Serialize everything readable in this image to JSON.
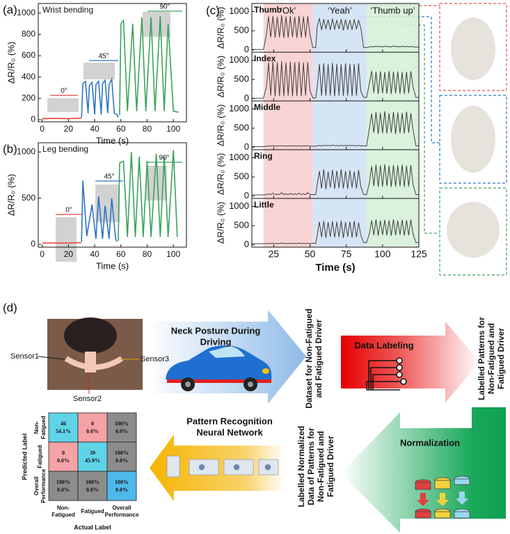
{
  "chart_data": [
    {
      "type": "line",
      "panel_label": "(a)",
      "annotation": "Wrist bending",
      "xlabel": "Time (s)",
      "ylabel": "ΔR/R₀ (%)",
      "xlim": [
        -3,
        110
      ],
      "xticks": [
        0,
        20,
        40,
        60,
        80,
        100
      ],
      "ylim": [
        -20,
        1090
      ],
      "yticks": [
        0,
        200,
        400,
        600,
        800,
        1000
      ],
      "series": [
        {
          "name": "0°",
          "color": "#e8413c",
          "x": [
            0,
            10,
            20,
            30
          ],
          "values": [
            10,
            12,
            10,
            15
          ]
        },
        {
          "name": "45°",
          "color": "#2e74c0",
          "x": [
            30,
            31,
            33,
            35,
            36,
            38,
            40,
            41,
            43,
            45,
            46,
            48,
            50,
            51,
            53,
            55,
            57,
            58
          ],
          "values": [
            20,
            340,
            360,
            60,
            320,
            350,
            50,
            330,
            360,
            50,
            340,
            370,
            60,
            330,
            380,
            60,
            50,
            20
          ]
        },
        {
          "name": "90°",
          "color": "#3aa35a",
          "x": [
            59,
            60,
            62,
            65,
            69,
            72,
            76,
            79,
            83,
            86,
            90,
            93,
            96,
            100,
            104
          ],
          "values": [
            40,
            900,
            930,
            80,
            900,
            80,
            960,
            80,
            960,
            80,
            970,
            80,
            900,
            80,
            70
          ]
        }
      ]
    },
    {
      "type": "line",
      "panel_label": "(b)",
      "annotation": "Leg bending",
      "xlabel": "Time (s)",
      "ylabel": "ΔR/R₀ (%)",
      "xlim": [
        -3,
        110
      ],
      "xticks": [
        0,
        20,
        40,
        60,
        80,
        100
      ],
      "ylim": [
        -30,
        1100
      ],
      "yticks": [
        0,
        500,
        1000
      ],
      "series": [
        {
          "name": "0°",
          "color": "#e8413c",
          "x": [
            0,
            10,
            20,
            30
          ],
          "values": [
            15,
            15,
            15,
            20
          ]
        },
        {
          "name": "45°",
          "color": "#2e74c0",
          "x": [
            30,
            31,
            34,
            38,
            41,
            43,
            46,
            48,
            51,
            53,
            56,
            57
          ],
          "values": [
            30,
            690,
            90,
            430,
            60,
            520,
            60,
            420,
            60,
            500,
            60,
            30
          ]
        },
        {
          "name": "90°",
          "color": "#3aa35a",
          "x": [
            58,
            59,
            62,
            65,
            68,
            71,
            74,
            77,
            80,
            83,
            87,
            90,
            93,
            96,
            100,
            103
          ],
          "values": [
            40,
            880,
            900,
            80,
            1000,
            80,
            950,
            80,
            900,
            80,
            980,
            80,
            950,
            80,
            1020,
            80
          ]
        }
      ]
    },
    {
      "type": "line-stack",
      "panel_label": "(c)",
      "xlabel": "Time (s)",
      "xlim": [
        10,
        125
      ],
      "xticks": [
        25,
        50,
        75,
        100,
        125
      ],
      "x": [
        10,
        18,
        20,
        21.5,
        23,
        24.5,
        26,
        27.5,
        29,
        30.5,
        32,
        33.5,
        35,
        36.5,
        38,
        39.5,
        41,
        42.5,
        44,
        45.5,
        47,
        48.5,
        50,
        52,
        54,
        55,
        56.5,
        58,
        59.5,
        61,
        62.5,
        64,
        65.5,
        67,
        68.5,
        70,
        71.5,
        73,
        74.5,
        76,
        77.5,
        79,
        80.5,
        82,
        83.5,
        85,
        87,
        89,
        91,
        92.5,
        94,
        95.5,
        97,
        98.5,
        100,
        101.5,
        103,
        104.5,
        106,
        107.5,
        109,
        110.5,
        112,
        113.5,
        115,
        116.5,
        118,
        119.5,
        121,
        123,
        125
      ],
      "regions": [
        {
          "label": "‘Ok’",
          "from": 18,
          "to": 52,
          "color": "#e8524a",
          "fill": "#f8cdcd"
        },
        {
          "label": "‘Yeah’",
          "from": 52,
          "to": 89,
          "color": "#2e6db4",
          "fill": "#cfe0f3"
        },
        {
          "label": "‘Thumb up’",
          "from": 89,
          "to": 125,
          "color": "#2ca24a",
          "fill": "#d3eed6"
        }
      ],
      "panels": [
        {
          "ylabel": "ΔR/R₀ (%)",
          "ylim": [
            -60,
            1100
          ],
          "yticks": [
            0,
            500,
            1000
          ],
          "series": [
            {
              "name": "Thumb",
              "color": "#404040",
              "values": [
                10,
                10,
                400,
                870,
                330,
                880,
                320,
                860,
                330,
                900,
                310,
                870,
                320,
                880,
                330,
                860,
                310,
                890,
                320,
                870,
                330,
                880,
                400,
                60,
                60,
                600,
                820,
                520,
                800,
                540,
                790,
                520,
                810,
                530,
                780,
                540,
                800,
                510,
                790,
                530,
                780,
                520,
                800,
                540,
                770,
                580,
                60,
                60,
                80,
                90,
                80,
                100,
                85,
                90,
                80,
                95,
                85,
                90,
                80,
                100,
                85,
                90,
                80,
                95,
                85,
                90,
                80,
                90,
                80,
                70,
                70
              ]
            }
          ]
        },
        {
          "ylabel": "ΔR/R₀ (%)",
          "ylim": [
            -60,
            1100
          ],
          "yticks": [
            0,
            500,
            1000
          ],
          "series": [
            {
              "name": "Index",
              "color": "#404040",
              "values": [
                10,
                10,
                300,
                940,
                80,
                960,
                60,
                950,
                70,
                970,
                60,
                940,
                80,
                960,
                60,
                950,
                70,
                960,
                60,
                940,
                80,
                950,
                200,
                20,
                20,
                300,
                900,
                80,
                920,
                70,
                900,
                80,
                930,
                60,
                910,
                80,
                900,
                70,
                920,
                80,
                910,
                60,
                900,
                80,
                920,
                200,
                30,
                30,
                400,
                720,
                150,
                700,
                120,
                710,
                140,
                690,
                130,
                720,
                120,
                700,
                140,
                710,
                130,
                690,
                120,
                700,
                140,
                710,
                300,
                30,
                30
              ]
            }
          ]
        },
        {
          "ylabel": "ΔR/R₀ (%)",
          "ylim": [
            -60,
            1100
          ],
          "yticks": [
            0,
            500,
            1000
          ],
          "series": [
            {
              "name": "Middle",
              "color": "#404040",
              "values": [
                20,
                20,
                30,
                40,
                30,
                45,
                30,
                40,
                35,
                45,
                30,
                40,
                30,
                45,
                35,
                40,
                30,
                45,
                30,
                40,
                35,
                45,
                30,
                30,
                30,
                40,
                50,
                40,
                55,
                45,
                50,
                40,
                60,
                45,
                50,
                40,
                55,
                45,
                50,
                40,
                55,
                45,
                50,
                40,
                55,
                40,
                40,
                40,
                500,
                880,
                380,
                920,
                350,
                900,
                370,
                940,
                360,
                890,
                380,
                920,
                350,
                910,
                370,
                900,
                360,
                930,
                380,
                890,
                450,
                40,
                40
              ]
            }
          ]
        },
        {
          "ylabel": "ΔR/R₀ (%)",
          "ylim": [
            -60,
            1100
          ],
          "yticks": [
            0,
            500,
            1000
          ],
          "series": [
            {
              "name": "Ring",
              "color": "#404040",
              "values": [
                30,
                30,
                40,
                60,
                40,
                80,
                40,
                50,
                40,
                90,
                40,
                60,
                40,
                70,
                40,
                60,
                40,
                80,
                40,
                60,
                40,
                90,
                40,
                40,
                40,
                300,
                650,
                200,
                700,
                180,
                640,
                220,
                680,
                190,
                660,
                210,
                700,
                200,
                650,
                190,
                670,
                220,
                640,
                200,
                680,
                250,
                40,
                40,
                350,
                780,
                260,
                820,
                240,
                800,
                250,
                830,
                260,
                790,
                240,
                810,
                250,
                800,
                260,
                820,
                240,
                790,
                250,
                810,
                300,
                40,
                40
              ]
            }
          ]
        },
        {
          "ylabel": "ΔR/R₀ (%)",
          "ylim": [
            -60,
            1100
          ],
          "yticks": [
            0,
            500,
            1000
          ],
          "series": [
            {
              "name": "Little",
              "color": "#404040",
              "values": [
                30,
                30,
                30,
                40,
                30,
                45,
                30,
                40,
                30,
                50,
                30,
                40,
                30,
                45,
                30,
                40,
                30,
                50,
                30,
                40,
                30,
                45,
                30,
                40,
                40,
                250,
                600,
                200,
                620,
                180,
                590,
                210,
                610,
                190,
                600,
                200,
                630,
                180,
                590,
                210,
                600,
                190,
                620,
                200,
                580,
                250,
                60,
                60,
                300,
                640,
                250,
                660,
                240,
                630,
                260,
                650,
                250,
                640,
                240,
                660,
                250,
                630,
                260,
                650,
                240,
                640,
                250,
                660,
                280,
                60,
                60
              ]
            }
          ]
        }
      ]
    }
  ],
  "diagram": {
    "panel_label": "(d)",
    "sensors": [
      "Sensor1",
      "Sensor2",
      "Sensor3"
    ],
    "neck_posture": [
      "Neck Posture During",
      "Driving"
    ],
    "dataset": [
      "Dataset for Non-Fatigued",
      "and Fatigued Driver"
    ],
    "data_labeling": "Data Labeling",
    "labelled_patterns": [
      "Labelled Patterns for",
      "Non-Fatigued and",
      "Fatigued Driver"
    ],
    "normalization": "Normalization",
    "normalized_data": [
      "Labelled Normalized",
      "Data of Patterns for",
      "Non-Fatigued and",
      "Fatigued Driver"
    ],
    "neural_network": [
      "Pattern Recognition",
      "Neural Network"
    ],
    "confusion_matrix": {
      "y_label": "Predicted Label",
      "x_label": "Actual Label",
      "row_labels": [
        [
          "Non-",
          "Fatigued"
        ],
        [
          "Fatigued"
        ],
        [
          "Overall",
          "Performance"
        ]
      ],
      "col_labels": [
        [
          "Non-",
          "Fatigued"
        ],
        [
          "Fatigued"
        ],
        [
          "Overall",
          "Performance"
        ]
      ],
      "cells": [
        [
          [
            "46",
            "54.1%"
          ],
          [
            "0",
            "0.0%"
          ],
          [
            "100%",
            "0.0%"
          ]
        ],
        [
          [
            "0",
            "0.0%"
          ],
          [
            "39",
            "45.9%"
          ],
          [
            "100%",
            "0.0%"
          ]
        ],
        [
          [
            "100%",
            "0.0%"
          ],
          [
            "100%",
            "0.0%"
          ],
          [
            "100%",
            "0.0%"
          ]
        ]
      ]
    }
  }
}
